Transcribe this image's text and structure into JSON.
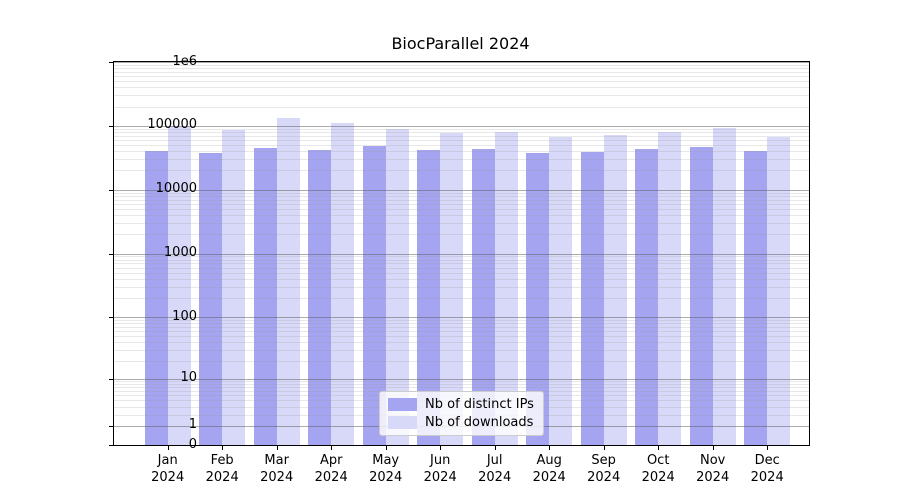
{
  "title": "BiocParallel 2024",
  "chart_data": {
    "type": "bar",
    "title": "BiocParallel 2024",
    "categories": [
      "Jan 2024",
      "Feb 2024",
      "Mar 2024",
      "Apr 2024",
      "May 2024",
      "Jun 2024",
      "Jul 2024",
      "Aug 2024",
      "Sep 2024",
      "Oct 2024",
      "Nov 2024",
      "Dec 2024"
    ],
    "series": [
      {
        "name": "Nb of distinct IPs",
        "color": "#a4a4f0",
        "values": [
          40000,
          37000,
          45500,
          42000,
          48000,
          41500,
          43000,
          37500,
          38500,
          44000,
          47000,
          41000
        ]
      },
      {
        "name": "Nb of downloads",
        "color": "#d8d8f8",
        "values": [
          99000,
          86000,
          135000,
          110000,
          89000,
          78000,
          81000,
          66000,
          71000,
          79000,
          94000,
          68000
        ]
      }
    ],
    "xlabel": "",
    "ylabel": "",
    "yscale": "pseudo-log log10(value+1)",
    "ylim": [
      0,
      1000000
    ],
    "y_tick_labels": [
      "0",
      "1",
      "10",
      "100",
      "1000",
      "10000",
      "100000",
      "1e6"
    ],
    "y_tick_values": [
      0,
      1,
      10,
      100,
      1000,
      10000,
      100000,
      1000000
    ],
    "grid": true,
    "legend_position": "lower center"
  },
  "legend": {
    "items": [
      {
        "label": "Nb of distinct IPs"
      },
      {
        "label": "Nb of downloads"
      }
    ]
  }
}
